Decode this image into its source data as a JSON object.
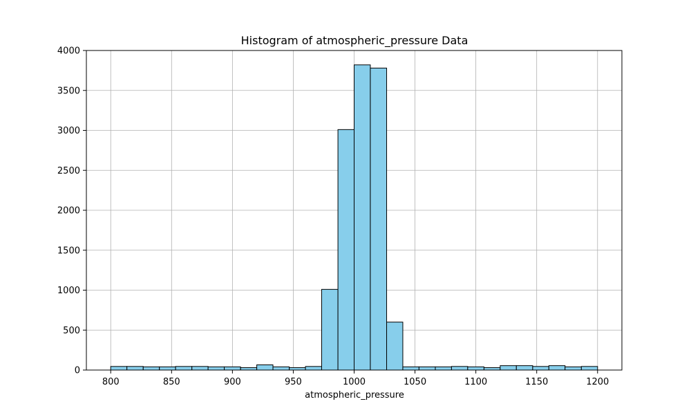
{
  "chart_data": {
    "type": "bar",
    "title": "Histogram of atmospheric_pressure Data",
    "xlabel": "atmospheric_pressure",
    "ylabel": "",
    "xlim": [
      780,
      1220
    ],
    "ylim": [
      0,
      4000
    ],
    "grid": true,
    "colors": {
      "bar_fill": "#87CEEB",
      "bar_edge": "#000000",
      "grid": "#b0b0b0"
    },
    "x_ticks": [
      800,
      850,
      900,
      950,
      1000,
      1050,
      1100,
      1150,
      1200
    ],
    "x_tick_labels": [
      "800",
      "850",
      "900",
      "950",
      "1000",
      "1050",
      "1100",
      "1150",
      "1200"
    ],
    "y_ticks": [
      0,
      500,
      1000,
      1500,
      2000,
      2500,
      3000,
      3500,
      4000
    ],
    "y_tick_labels": [
      "0",
      "500",
      "1000",
      "1500",
      "2000",
      "2500",
      "3000",
      "3500",
      "4000"
    ],
    "bins": [
      {
        "start": 800.0,
        "end": 813.3,
        "count": 45
      },
      {
        "start": 813.3,
        "end": 826.7,
        "count": 45
      },
      {
        "start": 826.7,
        "end": 840.0,
        "count": 40
      },
      {
        "start": 840.0,
        "end": 853.3,
        "count": 40
      },
      {
        "start": 853.3,
        "end": 866.7,
        "count": 45
      },
      {
        "start": 866.7,
        "end": 880.0,
        "count": 45
      },
      {
        "start": 880.0,
        "end": 893.3,
        "count": 40
      },
      {
        "start": 893.3,
        "end": 906.7,
        "count": 40
      },
      {
        "start": 906.7,
        "end": 920.0,
        "count": 30
      },
      {
        "start": 920.0,
        "end": 933.3,
        "count": 65
      },
      {
        "start": 933.3,
        "end": 946.7,
        "count": 40
      },
      {
        "start": 946.7,
        "end": 960.0,
        "count": 30
      },
      {
        "start": 960.0,
        "end": 973.3,
        "count": 45
      },
      {
        "start": 973.3,
        "end": 986.7,
        "count": 1010
      },
      {
        "start": 986.7,
        "end": 1000.0,
        "count": 3010
      },
      {
        "start": 1000.0,
        "end": 1013.3,
        "count": 3820
      },
      {
        "start": 1013.3,
        "end": 1026.7,
        "count": 3780
      },
      {
        "start": 1026.7,
        "end": 1040.0,
        "count": 600
      },
      {
        "start": 1040.0,
        "end": 1053.3,
        "count": 40
      },
      {
        "start": 1053.3,
        "end": 1066.7,
        "count": 40
      },
      {
        "start": 1066.7,
        "end": 1080.0,
        "count": 40
      },
      {
        "start": 1080.0,
        "end": 1093.3,
        "count": 45
      },
      {
        "start": 1093.3,
        "end": 1106.7,
        "count": 40
      },
      {
        "start": 1106.7,
        "end": 1120.0,
        "count": 30
      },
      {
        "start": 1120.0,
        "end": 1133.3,
        "count": 55
      },
      {
        "start": 1133.3,
        "end": 1146.7,
        "count": 55
      },
      {
        "start": 1146.7,
        "end": 1160.0,
        "count": 45
      },
      {
        "start": 1160.0,
        "end": 1173.3,
        "count": 55
      },
      {
        "start": 1173.3,
        "end": 1186.7,
        "count": 40
      },
      {
        "start": 1186.7,
        "end": 1200.0,
        "count": 45
      }
    ]
  }
}
